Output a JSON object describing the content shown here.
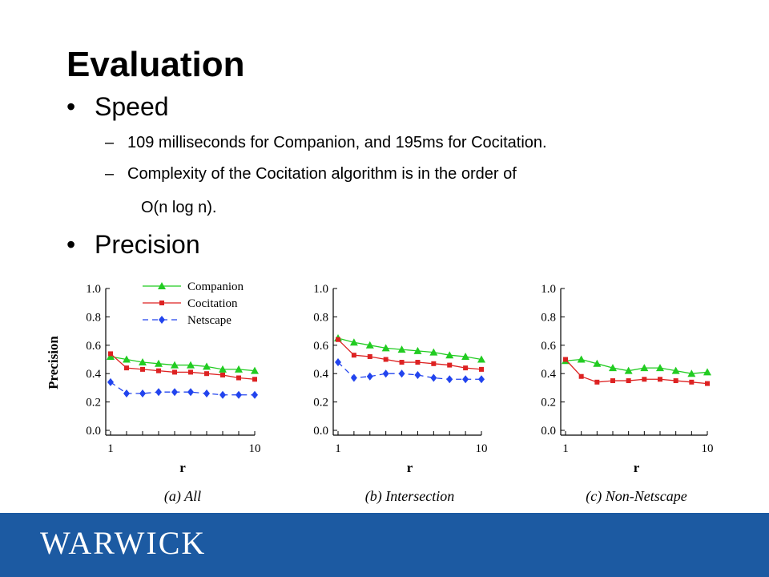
{
  "title": "Evaluation",
  "bullets": [
    {
      "marker": "•",
      "text": "Speed"
    },
    {
      "marker": "•",
      "text": "Precision"
    }
  ],
  "subbullets": [
    {
      "marker": "–",
      "text": "109 milliseconds for Companion, and 195ms for Cocitation."
    },
    {
      "marker": "–",
      "text": "Complexity of the Cocitation algorithm is in the order of"
    }
  ],
  "subbullet_continuation": "O(n log n).",
  "footer": {
    "logo_text": "WARWICK",
    "background": "#1c5aa2"
  },
  "colors": {
    "Companion": "#22cc22",
    "Cocitation": "#dd2222",
    "Netscape": "#2244ee"
  },
  "chart_data": [
    {
      "type": "line",
      "caption": "(a) All",
      "xlabel": "r",
      "ylabel": "Precision",
      "x": [
        1,
        2,
        3,
        4,
        5,
        6,
        7,
        8,
        9,
        10
      ],
      "xticks": [
        "1",
        "10"
      ],
      "yticks": [
        "0.0",
        "0.2",
        "0.4",
        "0.6",
        "0.8",
        "1.0"
      ],
      "ylim": [
        0,
        1
      ],
      "legend": "top-right",
      "series": [
        {
          "name": "Companion",
          "values": [
            0.52,
            0.5,
            0.48,
            0.47,
            0.46,
            0.46,
            0.45,
            0.43,
            0.43,
            0.42
          ]
        },
        {
          "name": "Cocitation",
          "values": [
            0.54,
            0.44,
            0.43,
            0.42,
            0.41,
            0.41,
            0.4,
            0.39,
            0.37,
            0.36
          ]
        },
        {
          "name": "Netscape",
          "values": [
            0.34,
            0.26,
            0.26,
            0.27,
            0.27,
            0.27,
            0.26,
            0.25,
            0.25,
            0.25
          ]
        }
      ]
    },
    {
      "type": "line",
      "caption": "(b) Intersection",
      "xlabel": "r",
      "ylabel": "",
      "x": [
        1,
        2,
        3,
        4,
        5,
        6,
        7,
        8,
        9,
        10
      ],
      "xticks": [
        "1",
        "10"
      ],
      "yticks": [
        "0.0",
        "0.2",
        "0.4",
        "0.6",
        "0.8",
        "1.0"
      ],
      "ylim": [
        0,
        1
      ],
      "series": [
        {
          "name": "Companion",
          "values": [
            0.65,
            0.62,
            0.6,
            0.58,
            0.57,
            0.56,
            0.55,
            0.53,
            0.52,
            0.5
          ]
        },
        {
          "name": "Cocitation",
          "values": [
            0.64,
            0.53,
            0.52,
            0.5,
            0.48,
            0.48,
            0.47,
            0.46,
            0.44,
            0.43
          ]
        },
        {
          "name": "Netscape",
          "values": [
            0.48,
            0.37,
            0.38,
            0.4,
            0.4,
            0.39,
            0.37,
            0.36,
            0.36,
            0.36
          ]
        }
      ]
    },
    {
      "type": "line",
      "caption": "(c) Non-Netscape",
      "xlabel": "r",
      "ylabel": "",
      "x": [
        1,
        2,
        3,
        4,
        5,
        6,
        7,
        8,
        9,
        10
      ],
      "xticks": [
        "1",
        "10"
      ],
      "yticks": [
        "0.0",
        "0.2",
        "0.4",
        "0.6",
        "0.8",
        "1.0"
      ],
      "ylim": [
        0,
        1
      ],
      "series": [
        {
          "name": "Companion",
          "values": [
            0.49,
            0.5,
            0.47,
            0.44,
            0.42,
            0.44,
            0.44,
            0.42,
            0.4,
            0.41
          ]
        },
        {
          "name": "Cocitation",
          "values": [
            0.5,
            0.38,
            0.34,
            0.35,
            0.35,
            0.36,
            0.36,
            0.35,
            0.34,
            0.33
          ]
        }
      ]
    }
  ]
}
